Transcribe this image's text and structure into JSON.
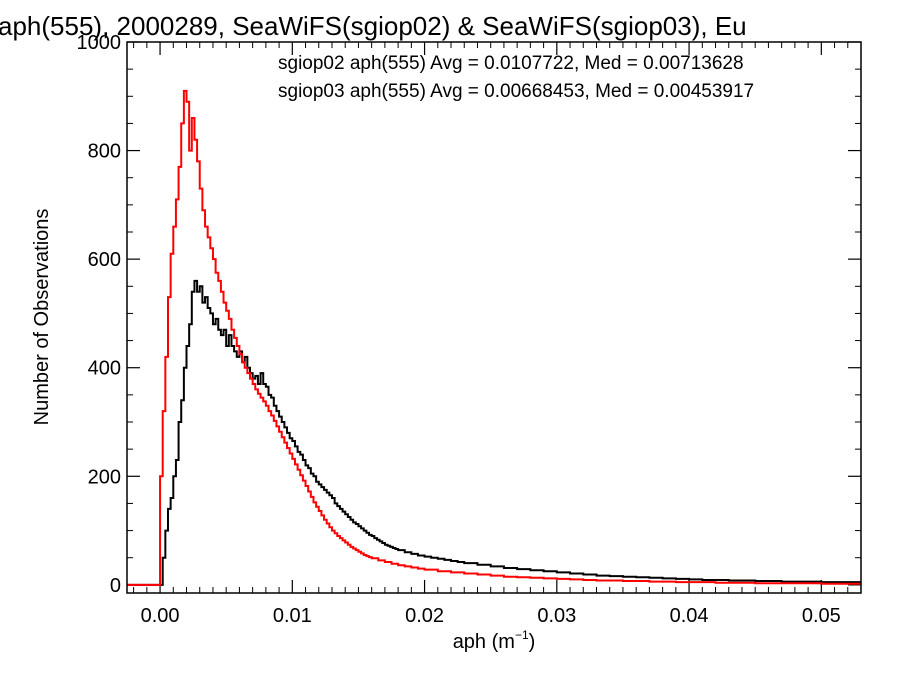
{
  "chart_data": {
    "type": "histogram-step",
    "title": "aph(555), 2000289, SeaWiFS(sgiop02) & SeaWiFS(sgiop03), Eu",
    "xlabel": "aph (m",
    "xlabel_sup": "−1",
    "xlabel_close": ")",
    "ylabel": "Number of Observations",
    "xlim": [
      -0.0025,
      0.053
    ],
    "ylim": [
      -15,
      1000
    ],
    "x_ticks": [
      0.0,
      0.01,
      0.02,
      0.03,
      0.04,
      0.05
    ],
    "x_tick_labels": [
      "0.00",
      "0.01",
      "0.02",
      "0.03",
      "0.04",
      "0.05"
    ],
    "y_ticks": [
      0,
      200,
      400,
      600,
      800,
      1000
    ],
    "y_tick_labels": [
      "0",
      "200",
      "400",
      "600",
      "800",
      "1000"
    ],
    "annotations": [
      {
        "text": "sgiop02 aph(555) Avg = 0.0107722, Med = 0.00713628",
        "color": "#000000"
      },
      {
        "text": "sgiop03 aph(555) Avg = 0.00668453, Med = 0.00453917",
        "color": "#ff0000"
      }
    ],
    "bin_width": 0.0002,
    "series": [
      {
        "color": "#000000",
        "points": [
          [
            -0.0025,
            0
          ],
          [
            0.0,
            0
          ],
          [
            0.0002,
            50
          ],
          [
            0.0004,
            100
          ],
          [
            0.0006,
            140
          ],
          [
            0.0008,
            160
          ],
          [
            0.001,
            200
          ],
          [
            0.0012,
            230
          ],
          [
            0.0014,
            300
          ],
          [
            0.0016,
            340
          ],
          [
            0.0018,
            400
          ],
          [
            0.002,
            440
          ],
          [
            0.0022,
            480
          ],
          [
            0.0024,
            540
          ],
          [
            0.0026,
            560
          ],
          [
            0.0028,
            540
          ],
          [
            0.003,
            550
          ],
          [
            0.0032,
            520
          ],
          [
            0.0034,
            530
          ],
          [
            0.0036,
            510
          ],
          [
            0.0038,
            500
          ],
          [
            0.004,
            480
          ],
          [
            0.0042,
            490
          ],
          [
            0.0044,
            470
          ],
          [
            0.0046,
            460
          ],
          [
            0.0048,
            470
          ],
          [
            0.005,
            440
          ],
          [
            0.0052,
            460
          ],
          [
            0.0054,
            440
          ],
          [
            0.0056,
            430
          ],
          [
            0.0058,
            420
          ],
          [
            0.006,
            430
          ],
          [
            0.0062,
            410
          ],
          [
            0.0064,
            420
          ],
          [
            0.0066,
            400
          ],
          [
            0.0068,
            390
          ],
          [
            0.007,
            380
          ],
          [
            0.0072,
            385
          ],
          [
            0.0074,
            370
          ],
          [
            0.0076,
            390
          ],
          [
            0.0078,
            370
          ],
          [
            0.008,
            365
          ],
          [
            0.0082,
            350
          ],
          [
            0.0084,
            345
          ],
          [
            0.0086,
            330
          ],
          [
            0.0088,
            320
          ],
          [
            0.009,
            310
          ],
          [
            0.0092,
            300
          ],
          [
            0.0094,
            290
          ],
          [
            0.0096,
            280
          ],
          [
            0.0098,
            270
          ],
          [
            0.01,
            265
          ],
          [
            0.0102,
            255
          ],
          [
            0.0104,
            245
          ],
          [
            0.0106,
            240
          ],
          [
            0.0108,
            230
          ],
          [
            0.011,
            220
          ],
          [
            0.0112,
            215
          ],
          [
            0.0114,
            205
          ],
          [
            0.0116,
            200
          ],
          [
            0.0118,
            190
          ],
          [
            0.012,
            185
          ],
          [
            0.0122,
            180
          ],
          [
            0.0124,
            175
          ],
          [
            0.0126,
            170
          ],
          [
            0.0128,
            165
          ],
          [
            0.013,
            160
          ],
          [
            0.0132,
            150
          ],
          [
            0.0134,
            145
          ],
          [
            0.0136,
            140
          ],
          [
            0.0138,
            135
          ],
          [
            0.014,
            130
          ],
          [
            0.0142,
            125
          ],
          [
            0.0144,
            120
          ],
          [
            0.0146,
            115
          ],
          [
            0.0148,
            112
          ],
          [
            0.015,
            108
          ],
          [
            0.0152,
            104
          ],
          [
            0.0154,
            100
          ],
          [
            0.0156,
            96
          ],
          [
            0.0158,
            92
          ],
          [
            0.016,
            90
          ],
          [
            0.0162,
            86
          ],
          [
            0.0164,
            83
          ],
          [
            0.0166,
            80
          ],
          [
            0.0168,
            77
          ],
          [
            0.017,
            74
          ],
          [
            0.0172,
            72
          ],
          [
            0.0174,
            70
          ],
          [
            0.0176,
            68
          ],
          [
            0.0178,
            66
          ],
          [
            0.018,
            64
          ],
          [
            0.0185,
            60
          ],
          [
            0.019,
            57
          ],
          [
            0.0195,
            54
          ],
          [
            0.02,
            52
          ],
          [
            0.0205,
            50
          ],
          [
            0.021,
            48
          ],
          [
            0.0215,
            46
          ],
          [
            0.022,
            44
          ],
          [
            0.0225,
            42
          ],
          [
            0.023,
            40
          ],
          [
            0.024,
            37
          ],
          [
            0.025,
            34
          ],
          [
            0.026,
            31
          ],
          [
            0.027,
            29
          ],
          [
            0.028,
            27
          ],
          [
            0.029,
            25
          ],
          [
            0.03,
            23
          ],
          [
            0.031,
            21
          ],
          [
            0.032,
            19
          ],
          [
            0.033,
            17
          ],
          [
            0.034,
            16
          ],
          [
            0.035,
            15
          ],
          [
            0.036,
            14
          ],
          [
            0.037,
            13
          ],
          [
            0.038,
            12
          ],
          [
            0.039,
            11
          ],
          [
            0.04,
            10
          ],
          [
            0.041,
            9
          ],
          [
            0.042,
            9
          ],
          [
            0.043,
            8
          ],
          [
            0.044,
            8
          ],
          [
            0.045,
            7
          ],
          [
            0.046,
            7
          ],
          [
            0.047,
            6
          ],
          [
            0.048,
            6
          ],
          [
            0.049,
            6
          ],
          [
            0.05,
            5
          ],
          [
            0.051,
            5
          ],
          [
            0.052,
            5
          ],
          [
            0.053,
            5
          ]
        ]
      },
      {
        "color": "#ff0000",
        "points": [
          [
            -0.0025,
            0
          ],
          [
            -0.0002,
            0
          ],
          [
            0.0,
            200
          ],
          [
            0.0002,
            320
          ],
          [
            0.0004,
            420
          ],
          [
            0.0006,
            530
          ],
          [
            0.0008,
            610
          ],
          [
            0.001,
            660
          ],
          [
            0.0012,
            710
          ],
          [
            0.0014,
            770
          ],
          [
            0.0016,
            850
          ],
          [
            0.0018,
            910
          ],
          [
            0.002,
            890
          ],
          [
            0.0022,
            800
          ],
          [
            0.0024,
            860
          ],
          [
            0.0026,
            820
          ],
          [
            0.0028,
            780
          ],
          [
            0.003,
            730
          ],
          [
            0.0032,
            690
          ],
          [
            0.0034,
            660
          ],
          [
            0.0036,
            640
          ],
          [
            0.0038,
            620
          ],
          [
            0.004,
            600
          ],
          [
            0.0042,
            575
          ],
          [
            0.0044,
            560
          ],
          [
            0.0046,
            540
          ],
          [
            0.0048,
            520
          ],
          [
            0.005,
            505
          ],
          [
            0.0052,
            490
          ],
          [
            0.0054,
            470
          ],
          [
            0.0056,
            455
          ],
          [
            0.0058,
            440
          ],
          [
            0.006,
            425
          ],
          [
            0.0062,
            410
          ],
          [
            0.0064,
            400
          ],
          [
            0.0066,
            390
          ],
          [
            0.0068,
            380
          ],
          [
            0.007,
            370
          ],
          [
            0.0072,
            360
          ],
          [
            0.0074,
            352
          ],
          [
            0.0076,
            345
          ],
          [
            0.0078,
            338
          ],
          [
            0.008,
            330
          ],
          [
            0.0082,
            320
          ],
          [
            0.0084,
            312
          ],
          [
            0.0086,
            302
          ],
          [
            0.0088,
            292
          ],
          [
            0.009,
            282
          ],
          [
            0.0092,
            272
          ],
          [
            0.0094,
            262
          ],
          [
            0.0096,
            252
          ],
          [
            0.0098,
            242
          ],
          [
            0.01,
            232
          ],
          [
            0.0102,
            222
          ],
          [
            0.0104,
            212
          ],
          [
            0.0106,
            202
          ],
          [
            0.0108,
            192
          ],
          [
            0.011,
            182
          ],
          [
            0.0112,
            172
          ],
          [
            0.0114,
            162
          ],
          [
            0.0116,
            152
          ],
          [
            0.0118,
            144
          ],
          [
            0.012,
            136
          ],
          [
            0.0122,
            128
          ],
          [
            0.0124,
            120
          ],
          [
            0.0126,
            113
          ],
          [
            0.0128,
            106
          ],
          [
            0.013,
            100
          ],
          [
            0.0132,
            95
          ],
          [
            0.0134,
            90
          ],
          [
            0.0136,
            86
          ],
          [
            0.0138,
            82
          ],
          [
            0.014,
            78
          ],
          [
            0.0142,
            74
          ],
          [
            0.0144,
            70
          ],
          [
            0.0146,
            67
          ],
          [
            0.0148,
            64
          ],
          [
            0.015,
            61
          ],
          [
            0.0152,
            58
          ],
          [
            0.0154,
            55
          ],
          [
            0.0156,
            53
          ],
          [
            0.0158,
            51
          ],
          [
            0.016,
            49
          ],
          [
            0.0165,
            45
          ],
          [
            0.017,
            42
          ],
          [
            0.0175,
            39
          ],
          [
            0.018,
            36
          ],
          [
            0.0185,
            34
          ],
          [
            0.019,
            32
          ],
          [
            0.0195,
            30
          ],
          [
            0.02,
            28
          ],
          [
            0.021,
            25
          ],
          [
            0.022,
            23
          ],
          [
            0.023,
            21
          ],
          [
            0.024,
            19
          ],
          [
            0.025,
            17
          ],
          [
            0.026,
            15
          ],
          [
            0.027,
            14
          ],
          [
            0.028,
            13
          ],
          [
            0.029,
            12
          ],
          [
            0.03,
            11
          ],
          [
            0.031,
            10
          ],
          [
            0.032,
            9
          ],
          [
            0.033,
            8
          ],
          [
            0.034,
            8
          ],
          [
            0.035,
            7
          ],
          [
            0.036,
            7
          ],
          [
            0.037,
            6
          ],
          [
            0.038,
            6
          ],
          [
            0.039,
            5
          ],
          [
            0.04,
            5
          ],
          [
            0.041,
            5
          ],
          [
            0.042,
            4
          ],
          [
            0.043,
            4
          ],
          [
            0.044,
            4
          ],
          [
            0.045,
            3
          ],
          [
            0.046,
            3
          ],
          [
            0.047,
            3
          ],
          [
            0.048,
            3
          ],
          [
            0.049,
            3
          ],
          [
            0.05,
            2
          ],
          [
            0.051,
            2
          ],
          [
            0.052,
            2
          ],
          [
            0.053,
            2
          ]
        ]
      }
    ]
  }
}
